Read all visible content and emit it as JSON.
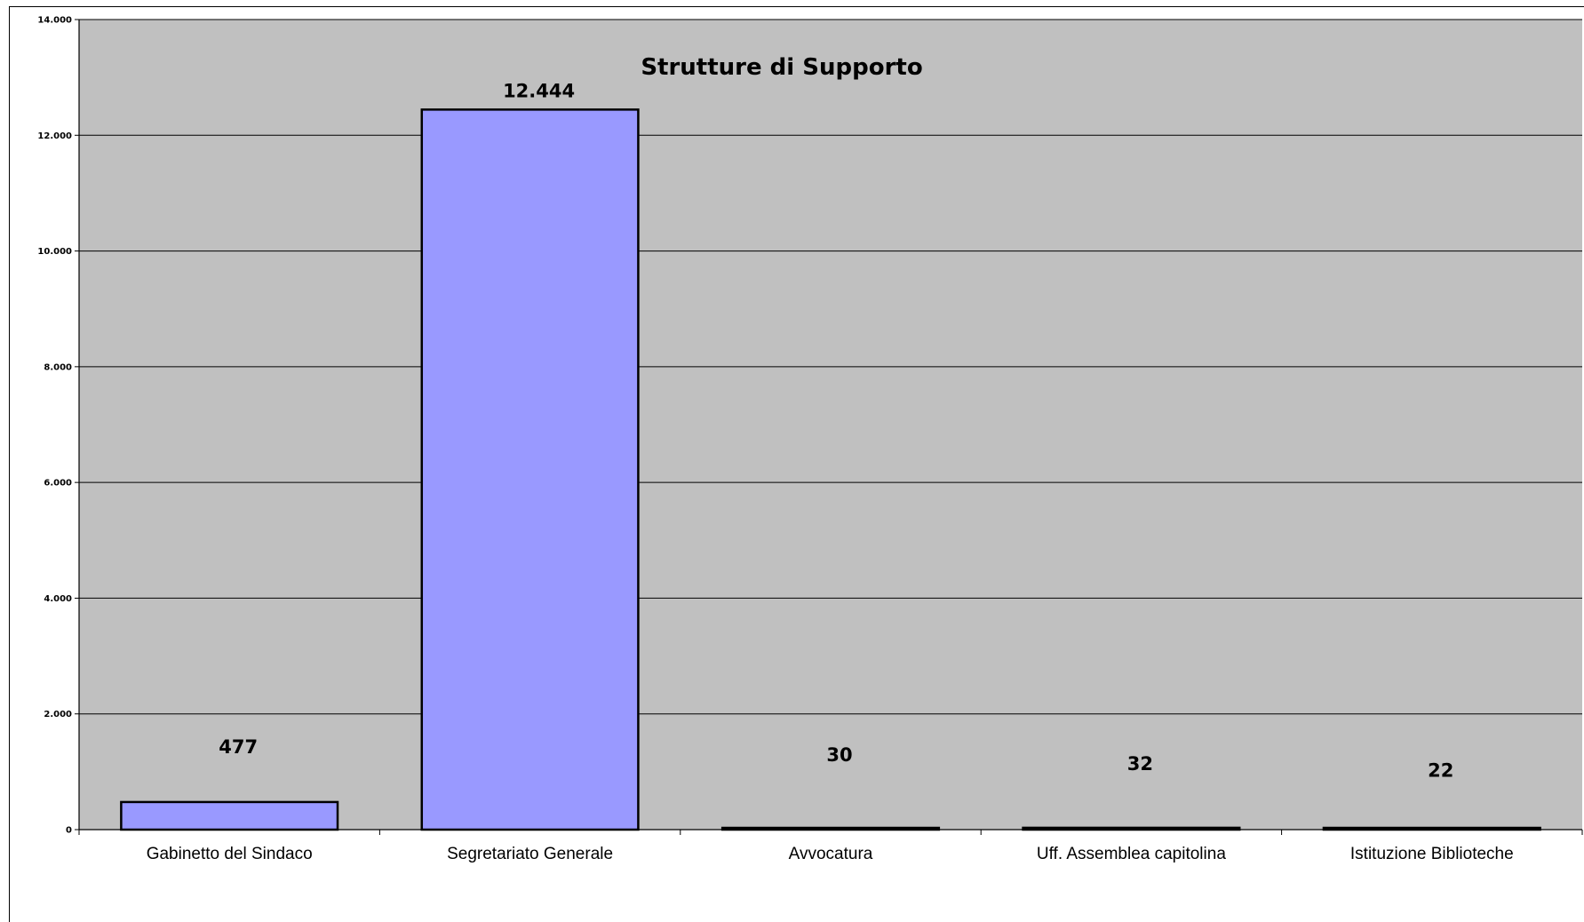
{
  "chart_data": {
    "type": "bar",
    "title": "Strutture di Supporto",
    "xlabel": "",
    "ylabel": "",
    "categories": [
      "Gabinetto del Sindaco",
      "Segretariato Generale",
      "Avvocatura",
      "Uff. Assemblea capitolina",
      "Istituzione Biblioteche"
    ],
    "values": [
      477,
      12444,
      30,
      32,
      22
    ],
    "data_labels": [
      "477",
      "12.444",
      "30",
      "32",
      "22"
    ],
    "ylim": [
      0,
      14000
    ],
    "yticks": [
      0,
      2000,
      4000,
      6000,
      8000,
      10000,
      12000,
      14000
    ],
    "ytick_labels": [
      "0",
      "2.000",
      "4.000",
      "6.000",
      "8.000",
      "10.000",
      "12.000",
      "14.000"
    ],
    "grid": true,
    "legend": "none",
    "colors": {
      "bar_fill": "#9999ff",
      "plot_background": "#c0c0c0",
      "gridline": "#000000"
    }
  }
}
